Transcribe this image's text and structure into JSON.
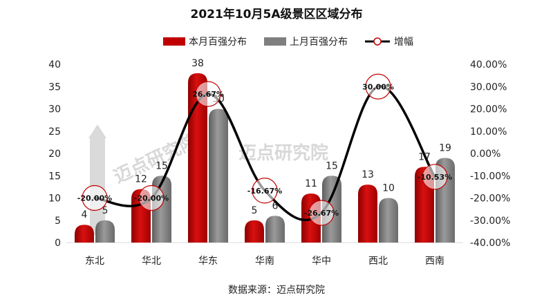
{
  "chart_data": {
    "type": "bar",
    "title": "2021年10月5A级景区区域分布",
    "categories": [
      "东北",
      "华北",
      "华东",
      "华南",
      "华中",
      "西北",
      "西南"
    ],
    "series": [
      {
        "name": "本月百强分布",
        "type": "bar",
        "axis": "left",
        "color": "#c00000",
        "values": [
          4,
          12,
          38,
          5,
          11,
          13,
          17
        ]
      },
      {
        "name": "上月百强分布",
        "type": "bar",
        "axis": "left",
        "color": "#7f7f7f",
        "values": [
          5,
          15,
          30,
          6,
          15,
          10,
          19
        ]
      },
      {
        "name": "增幅",
        "type": "line",
        "axis": "right",
        "color": "#000000",
        "marker_color": "#c00000",
        "values": [
          -20.0,
          -20.0,
          26.67,
          -16.67,
          -26.67,
          30.0,
          -10.53
        ],
        "labels": [
          "-20.00%",
          "-20.00%",
          "26.67%",
          "-16.67%",
          "-26.67%",
          "30.00%",
          "-10.53%"
        ]
      }
    ],
    "y_left": {
      "min": 0,
      "max": 40,
      "step": 5
    },
    "y_right": {
      "min": -40,
      "max": 40,
      "step": 10,
      "tick_labels": [
        "-40.00%",
        "-30.00%",
        "-20.00%",
        "-10.00%",
        "0.00%",
        "10.00%",
        "20.00%",
        "30.00%",
        "40.00%"
      ]
    },
    "legend_position": "top",
    "grid": false
  },
  "source": "数据来源：迈点研究院",
  "watermark": "迈点研究院"
}
